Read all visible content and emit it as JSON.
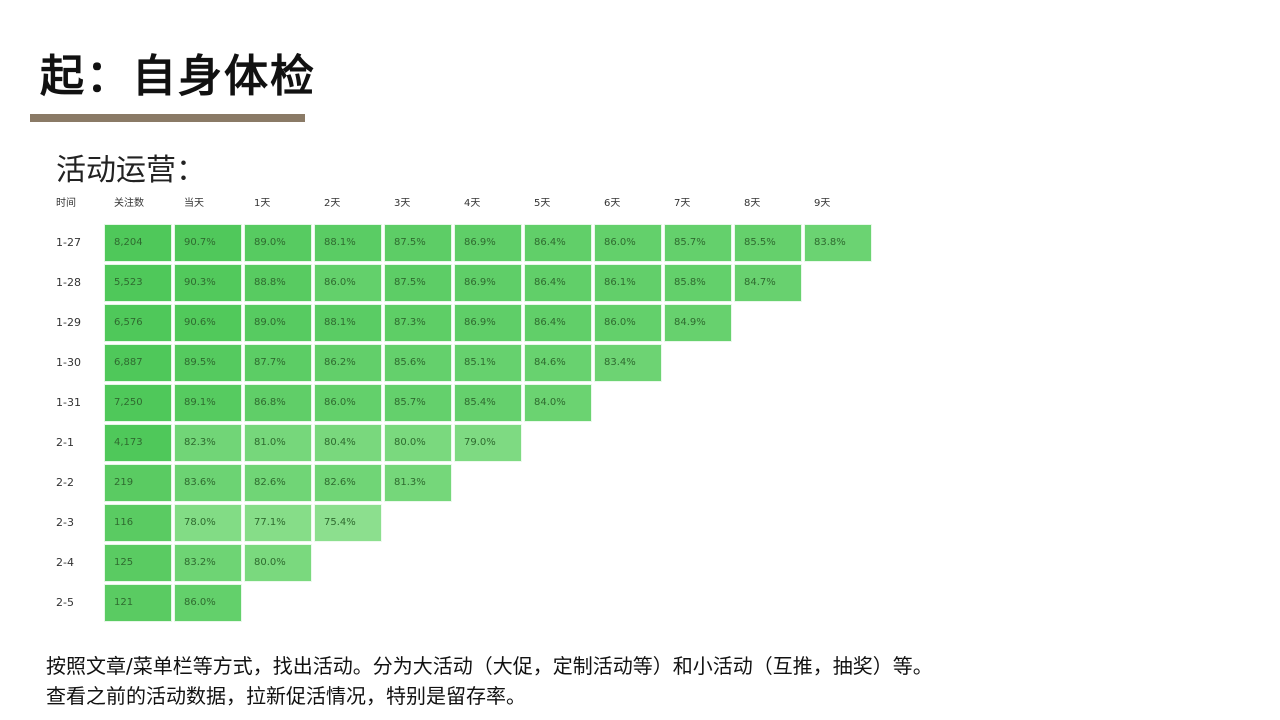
{
  "slide": {
    "title": "起：自身体检",
    "section_heading": "活动运营：",
    "footer_line1": "按照文章/菜单栏等方式，找出活动。分为大活动（大促，定制活动等）和小活动（互推，抽奖）等。",
    "footer_line2": "查看之前的活动数据，拉新促活情况，特别是留存率。"
  },
  "chart_data": {
    "type": "table",
    "columns": [
      "时间",
      "关注数",
      "当天",
      "1天",
      "2天",
      "3天",
      "4天",
      "5天",
      "6天",
      "7天",
      "8天",
      "9天"
    ],
    "rows": [
      {
        "date": "1-27",
        "followers": "8,204",
        "retention": [
          "90.7%",
          "89.0%",
          "88.1%",
          "87.5%",
          "86.9%",
          "86.4%",
          "86.0%",
          "85.7%",
          "85.5%",
          "83.8%"
        ]
      },
      {
        "date": "1-28",
        "followers": "5,523",
        "retention": [
          "90.3%",
          "88.8%",
          "86.0%",
          "87.5%",
          "86.9%",
          "86.4%",
          "86.1%",
          "85.8%",
          "84.7%"
        ]
      },
      {
        "date": "1-29",
        "followers": "6,576",
        "retention": [
          "90.6%",
          "89.0%",
          "88.1%",
          "87.3%",
          "86.9%",
          "86.4%",
          "86.0%",
          "84.9%"
        ]
      },
      {
        "date": "1-30",
        "followers": "6,887",
        "retention": [
          "89.5%",
          "87.7%",
          "86.2%",
          "85.6%",
          "85.1%",
          "84.6%",
          "83.4%"
        ]
      },
      {
        "date": "1-31",
        "followers": "7,250",
        "retention": [
          "89.1%",
          "86.8%",
          "86.0%",
          "85.7%",
          "85.4%",
          "84.0%"
        ]
      },
      {
        "date": "2-1",
        "followers": "4,173",
        "retention": [
          "82.3%",
          "81.0%",
          "80.4%",
          "80.0%",
          "79.0%"
        ]
      },
      {
        "date": "2-2",
        "followers": "219",
        "retention": [
          "83.6%",
          "82.6%",
          "82.6%",
          "81.3%"
        ]
      },
      {
        "date": "2-3",
        "followers": "116",
        "retention": [
          "78.0%",
          "77.1%",
          "75.4%"
        ]
      },
      {
        "date": "2-4",
        "followers": "125",
        "retention": [
          "83.2%",
          "80.0%"
        ]
      },
      {
        "date": "2-5",
        "followers": "121",
        "retention": [
          "86.0%"
        ]
      }
    ],
    "colors": {
      "high": "#4fc85a",
      "low": "#8ee08f"
    }
  }
}
